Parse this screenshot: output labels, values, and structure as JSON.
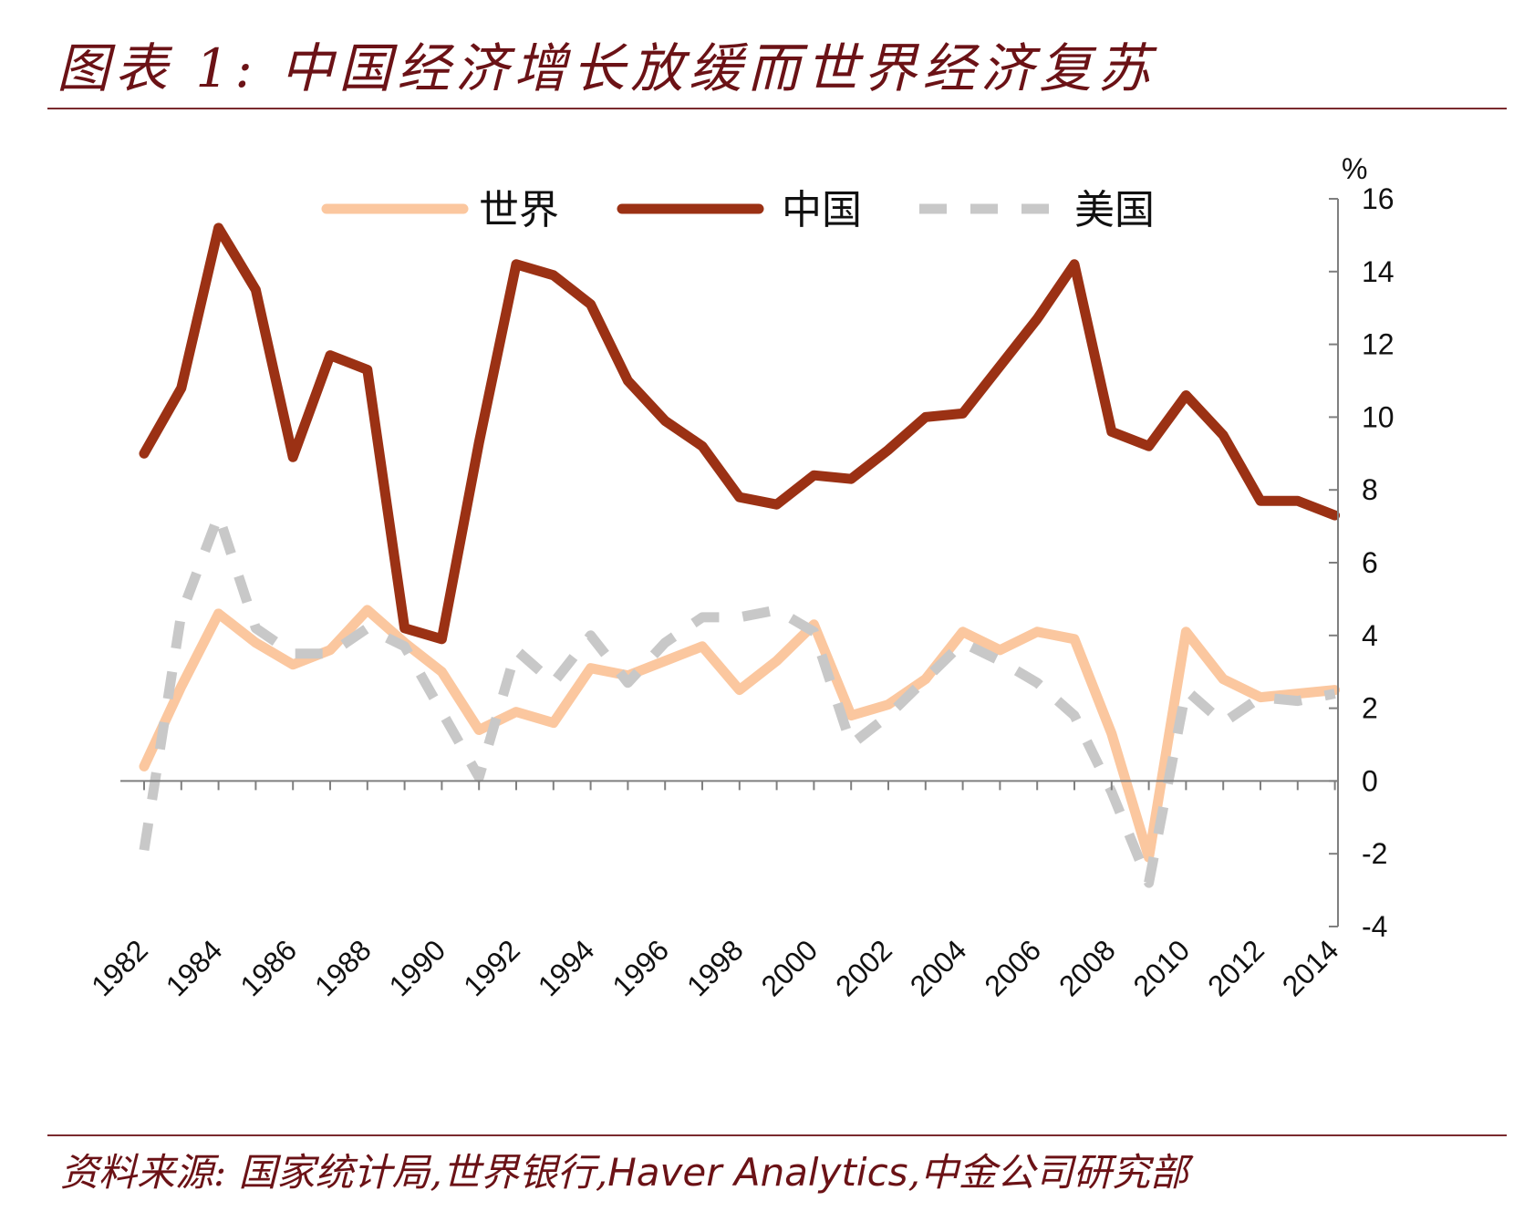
{
  "header": {
    "title": "图表 1:  中国经济增长放缓而世界经济复苏"
  },
  "footer": {
    "source_prefix": "资料来源:  国家统计局,世界银行,",
    "source_latin": "Haver Analytics",
    "source_suffix": ",中金公司研究部"
  },
  "colors": {
    "world": "#fbc79f",
    "china": "#9b3114",
    "usa": "#c8c8c8",
    "axis": "#7f7f7f",
    "rule": "#7a2a2e"
  },
  "chart_data": {
    "type": "line",
    "title": "中国经济增长放缓而世界经济复苏",
    "ylabel": "%",
    "ylim": [
      -4,
      16
    ],
    "yticks": [
      -4,
      -2,
      0,
      2,
      4,
      6,
      8,
      10,
      12,
      14,
      16
    ],
    "x": [
      1982,
      1983,
      1984,
      1985,
      1986,
      1987,
      1988,
      1989,
      1990,
      1991,
      1992,
      1993,
      1994,
      1995,
      1996,
      1997,
      1998,
      1999,
      2000,
      2001,
      2002,
      2003,
      2004,
      2005,
      2006,
      2007,
      2008,
      2009,
      2010,
      2011,
      2012,
      2013,
      2014
    ],
    "xtick_labels": [
      "1982",
      "1984",
      "1986",
      "1988",
      "1990",
      "1992",
      "1994",
      "1996",
      "1998",
      "2000",
      "2002",
      "2004",
      "2006",
      "2008",
      "2010",
      "2012",
      "2014"
    ],
    "legend_position": "top",
    "series": [
      {
        "name": "世界",
        "style": "solid",
        "color": "#fbc79f",
        "values": [
          0.4,
          2.6,
          4.6,
          3.8,
          3.2,
          3.6,
          4.7,
          3.8,
          3.0,
          1.4,
          1.9,
          1.6,
          3.1,
          2.9,
          3.3,
          3.7,
          2.5,
          3.3,
          4.3,
          1.8,
          2.1,
          2.8,
          4.1,
          3.6,
          4.1,
          3.9,
          1.3,
          -2.1,
          4.1,
          2.8,
          2.3,
          2.4,
          2.5
        ]
      },
      {
        "name": "中国",
        "style": "solid",
        "color": "#9b3114",
        "values": [
          9.0,
          10.8,
          15.2,
          13.5,
          8.9,
          11.7,
          11.3,
          4.2,
          3.9,
          9.3,
          14.2,
          13.9,
          13.1,
          11.0,
          9.9,
          9.2,
          7.8,
          7.6,
          8.4,
          8.3,
          9.1,
          10.0,
          10.1,
          11.4,
          12.7,
          14.2,
          9.6,
          9.2,
          10.6,
          9.5,
          7.7,
          7.7,
          7.3
        ]
      },
      {
        "name": "美国",
        "style": "dashed",
        "color": "#c8c8c8",
        "values": [
          -1.9,
          4.6,
          7.3,
          4.2,
          3.5,
          3.5,
          4.2,
          3.7,
          1.9,
          0.1,
          3.6,
          2.7,
          4.0,
          2.7,
          3.8,
          4.5,
          4.5,
          4.7,
          4.1,
          1.0,
          1.8,
          2.8,
          3.8,
          3.3,
          2.7,
          1.8,
          -0.3,
          -2.8,
          2.5,
          1.6,
          2.3,
          2.2,
          2.4
        ]
      }
    ]
  }
}
